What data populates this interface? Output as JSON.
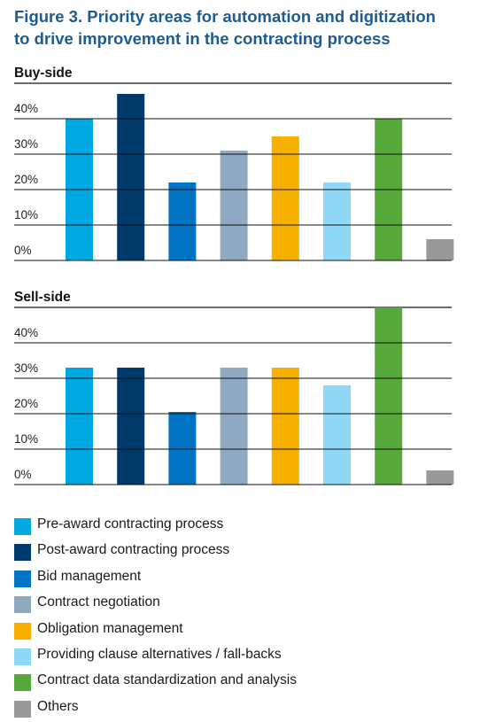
{
  "title": {
    "line1": "Figure 3. Priority areas for automation and digitization",
    "line2": "to drive improvement in the contracting process"
  },
  "chart_data": [
    {
      "type": "bar",
      "title": "Buy-side",
      "categories": [
        "Pre-award contracting process",
        "Post-award contracting process",
        "Bid management",
        "Contract negotiation",
        "Obligation management",
        "Providing clause alternatives / fall-backs",
        "Contract data standardization and analysis",
        "Others"
      ],
      "values": [
        40,
        47,
        22,
        31,
        35,
        22,
        40,
        6
      ],
      "colors": [
        "#00a8e1",
        "#003a6b",
        "#0073c2",
        "#8ea9c1",
        "#f7b000",
        "#8fd9f6",
        "#57a83b",
        "#999999"
      ],
      "yticks": [
        "0%",
        "10%",
        "20%",
        "30%",
        "40%"
      ],
      "ylim": [
        0,
        47
      ],
      "grid": true,
      "legend_position": "bottom"
    },
    {
      "type": "bar",
      "title": "Sell-side",
      "categories": [
        "Pre-award contracting process",
        "Post-award contracting process",
        "Bid management",
        "Contract negotiation",
        "Obligation management",
        "Providing clause alternatives / fall-backs",
        "Contract data standardization and analysis",
        "Others"
      ],
      "values": [
        33,
        33,
        20.5,
        33,
        33,
        28,
        50,
        4
      ],
      "colors": [
        "#00a8e1",
        "#003a6b",
        "#0073c2",
        "#8ea9c1",
        "#f7b000",
        "#8fd9f6",
        "#57a83b",
        "#999999"
      ],
      "yticks": [
        "0%",
        "10%",
        "20%",
        "30%",
        "40%"
      ],
      "ylim": [
        0,
        50
      ],
      "grid": true,
      "legend_position": "bottom"
    }
  ],
  "legend": [
    {
      "label": "Pre-award contracting process",
      "color": "#00a8e1"
    },
    {
      "label": "Post-award contracting process",
      "color": "#003a6b"
    },
    {
      "label": "Bid management",
      "color": "#0073c2"
    },
    {
      "label": "Contract negotiation",
      "color": "#8ea9c1"
    },
    {
      "label": "Obligation management",
      "color": "#f7b000"
    },
    {
      "label": "Providing clause alternatives / fall-backs",
      "color": "#8fd9f6"
    },
    {
      "label": "Contract data standardization and analysis",
      "color": "#57a83b"
    },
    {
      "label": "Others",
      "color": "#999999"
    }
  ]
}
